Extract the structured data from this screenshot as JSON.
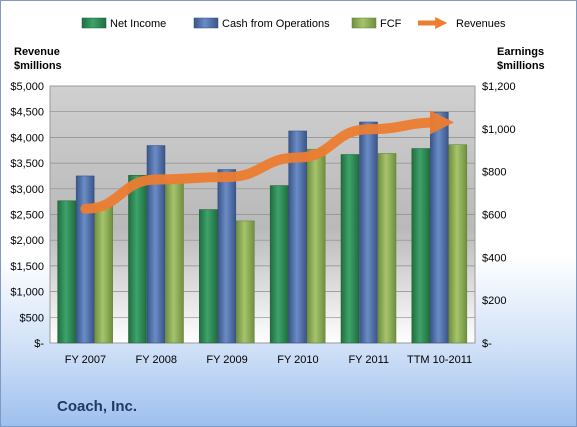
{
  "company": "Coach, Inc.",
  "chart_data": {
    "type": "bar",
    "categories": [
      "FY 2007",
      "FY 2008",
      "FY 2009",
      "FY 2010",
      "FY 2011",
      "TTM 10-2011"
    ],
    "series": [
      {
        "name": "Net Income",
        "axis": "right",
        "color": "#2e8b57",
        "values": [
          664,
          783,
          623,
          735,
          880,
          908
        ]
      },
      {
        "name": "Cash from Operations",
        "axis": "right",
        "color": "#4f6fa8",
        "values": [
          780,
          922,
          810,
          990,
          1032,
          1078
        ]
      },
      {
        "name": "FCF",
        "axis": "right",
        "color": "#8aab55",
        "values": [
          640,
          760,
          570,
          905,
          885,
          926
        ]
      }
    ],
    "line_series": {
      "name": "Revenues",
      "axis": "left",
      "color": "#ed7d31",
      "values": [
        2612,
        3181,
        3230,
        3608,
        4159,
        4293
      ]
    },
    "y_left": {
      "label_line1": "Revenue",
      "label_line2": "$millions",
      "min": 0,
      "max": 5000,
      "step": 500,
      "prefix": "$",
      "zero_label": "$-"
    },
    "y_right": {
      "label_line1": "Earnings",
      "label_line2": "$millions",
      "min": 0,
      "max": 1200,
      "step": 200,
      "prefix": "$",
      "zero_label": "$-"
    },
    "legend_position": "top",
    "grid": true
  }
}
